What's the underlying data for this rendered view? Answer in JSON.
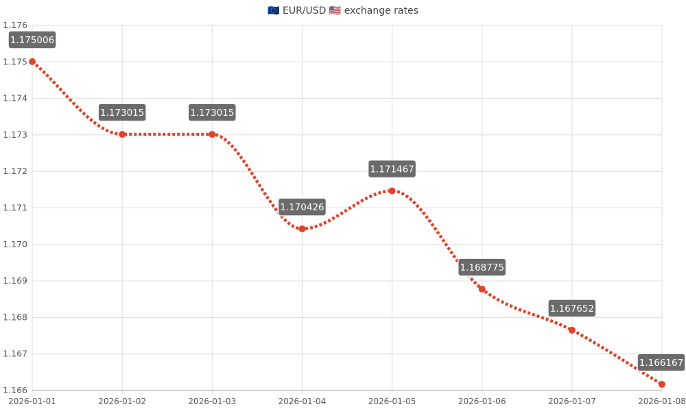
{
  "chart_data": {
    "type": "line",
    "title": "🇪🇺 EUR/USD 🇺🇸 exchange rates",
    "x": [
      "2026-01-01",
      "2026-01-02",
      "2026-01-03",
      "2026-01-04",
      "2026-01-05",
      "2026-01-06",
      "2026-01-07",
      "2026-01-08"
    ],
    "series": [
      {
        "values": [
          1.175006,
          1.173015,
          1.173015,
          1.170426,
          1.171467,
          1.168775,
          1.167652,
          1.166167
        ],
        "labels": [
          "1.175006",
          "1.173015",
          "1.173015",
          "1.170426",
          "1.171467",
          "1.168775",
          "1.167652",
          "1.166167"
        ],
        "color": "#e0442a",
        "style": "dotted smooth line with data labels"
      }
    ],
    "ylim": [
      1.166,
      1.176
    ],
    "yticks": [
      "1.166",
      "1.167",
      "1.168",
      "1.169",
      "1.170",
      "1.171",
      "1.172",
      "1.173",
      "1.174",
      "1.175",
      "1.176"
    ],
    "ytick_values": [
      1.166,
      1.167,
      1.168,
      1.169,
      1.17,
      1.171,
      1.172,
      1.173,
      1.174,
      1.175,
      1.176
    ],
    "grid": true,
    "xlabel": "",
    "ylabel": ""
  }
}
